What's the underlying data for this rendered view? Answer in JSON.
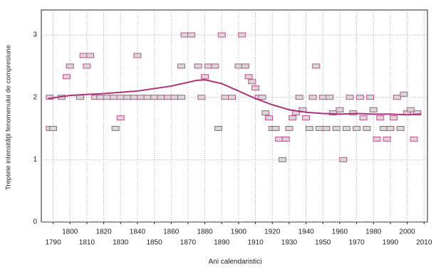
{
  "chart_data": {
    "type": "scatter",
    "xlabel": "Ani calendaristici",
    "ylabel": "Treptele intensităţii fenomenului de compresiune",
    "xlim": [
      1783,
      2012
    ],
    "ylim": [
      0,
      3.4
    ],
    "xticks": [
      1790,
      1800,
      1810,
      1820,
      1830,
      1840,
      1850,
      1860,
      1870,
      1880,
      1890,
      1900,
      1910,
      1920,
      1930,
      1940,
      1950,
      1960,
      1970,
      1980,
      1990,
      2000,
      2010
    ],
    "yticks": [
      0,
      1,
      2,
      3
    ],
    "grid": true,
    "series": [
      {
        "color": "#c0508a",
        "marker": "square",
        "x": [
          1788,
          1790,
          1788,
          1795,
          1798,
          1800,
          1806,
          1808,
          1810,
          1812,
          1815,
          1818,
          1822,
          1826,
          1827,
          1830,
          1830,
          1834,
          1838,
          1840,
          1842,
          1846,
          1850,
          1854,
          1858,
          1862,
          1866,
          1866,
          1868,
          1872,
          1876,
          1878,
          1880,
          1882,
          1886,
          1888,
          1890,
          1892,
          1896,
          1900,
          1902,
          1904,
          1906,
          1908,
          1910,
          1912,
          1914,
          1916,
          1918,
          1920,
          1922,
          1924,
          1926,
          1928,
          1930,
          1932,
          1934,
          1936,
          1938,
          1940,
          1942,
          1944,
          1946,
          1948,
          1950,
          1952,
          1954,
          1956,
          1958,
          1960,
          1962,
          1964,
          1966,
          1968,
          1970,
          1972,
          1974,
          1976,
          1978,
          1980,
          1982,
          1984,
          1986,
          1988,
          1990,
          1992,
          1994,
          1996,
          1998,
          2000,
          2002,
          2004,
          2006
        ],
        "values": [
          1.5,
          1.5,
          2,
          2,
          2.33,
          2.5,
          2,
          2.67,
          2.5,
          2.67,
          2,
          2,
          2,
          2,
          1.5,
          1.67,
          2,
          2,
          2,
          2.67,
          2,
          2,
          2,
          2,
          2,
          2,
          2,
          2.5,
          3,
          3,
          2.5,
          2,
          2.33,
          2.5,
          2.5,
          1.5,
          3,
          2,
          2,
          2.5,
          3,
          2.5,
          2.33,
          2.25,
          2.15,
          2,
          2,
          1.75,
          1.67,
          1.5,
          1.5,
          1.33,
          1,
          1.33,
          1.5,
          1.67,
          1.75,
          2,
          1.8,
          1.67,
          1.5,
          2,
          2.5,
          1.5,
          2,
          1.5,
          2,
          1.75,
          1.5,
          1.8,
          1,
          1.5,
          2,
          1.75,
          1.5,
          2,
          1.67,
          1.5,
          2,
          1.8,
          1.33,
          1.67,
          1.5,
          1.33,
          1.5,
          1.67,
          2,
          1.5,
          2.05,
          1.75,
          1.8,
          1.33,
          1.75
        ]
      },
      {
        "color": "#b0307a",
        "style": "line",
        "x": [
          1787,
          1800,
          1820,
          1840,
          1860,
          1875,
          1880,
          1890,
          1900,
          1910,
          1920,
          1930,
          1940,
          1950,
          1960,
          1970,
          1980,
          1990,
          2000,
          2008
        ],
        "values": [
          1.98,
          2.03,
          2.06,
          2.1,
          2.18,
          2.27,
          2.28,
          2.22,
          2.1,
          1.98,
          1.88,
          1.8,
          1.76,
          1.74,
          1.73,
          1.74,
          1.73,
          1.73,
          1.72,
          1.73
        ]
      }
    ]
  }
}
